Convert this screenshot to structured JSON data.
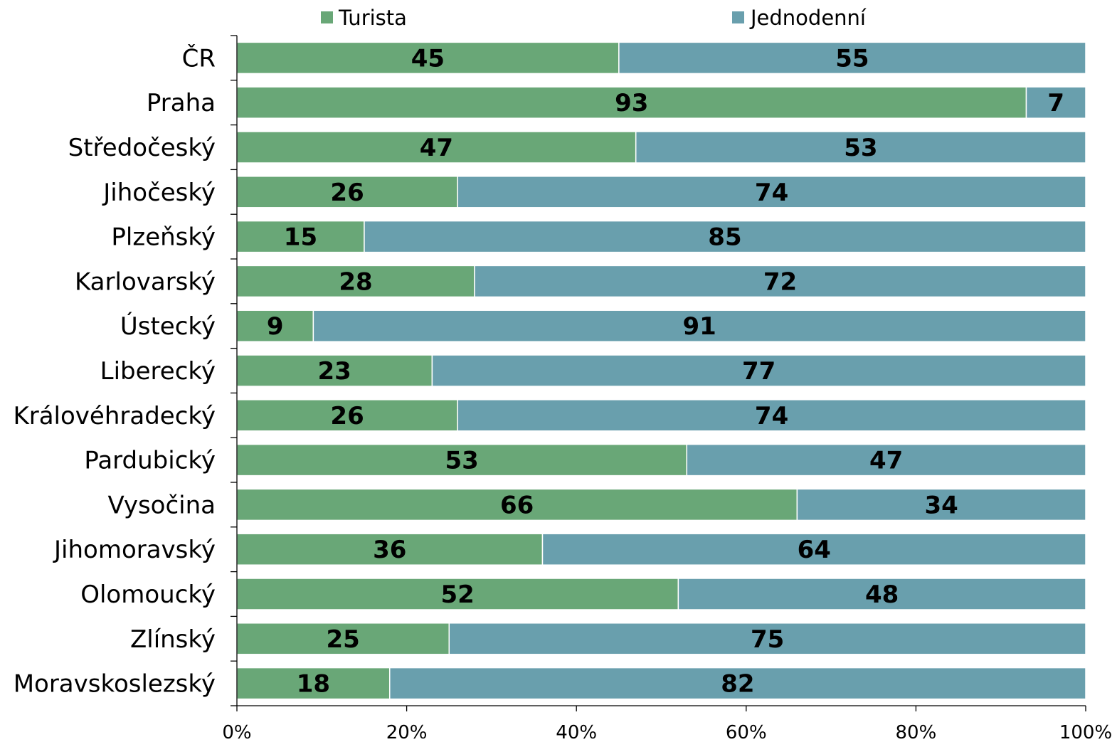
{
  "chart_data": {
    "type": "bar",
    "orientation": "horizontal",
    "stacking": "percent",
    "categories": [
      "ČR",
      "Praha",
      "Středočeský",
      "Jihočeský",
      "Plzeňský",
      "Karlovarský",
      "Ústecký",
      "Liberecký",
      "Královéhradecký",
      "Pardubický",
      "Vysočina",
      "Jihomoravský",
      "Olomoucký",
      "Zlínský",
      "Moravskoslezský"
    ],
    "series": [
      {
        "name": "Turista",
        "color": "#69a777",
        "values": [
          45,
          93,
          47,
          26,
          15,
          28,
          9,
          23,
          26,
          53,
          66,
          36,
          52,
          25,
          18
        ]
      },
      {
        "name": "Jednodenní",
        "color": "#699fad",
        "values": [
          55,
          7,
          53,
          74,
          85,
          72,
          91,
          77,
          74,
          47,
          34,
          64,
          48,
          75,
          82
        ]
      }
    ],
    "xticks": [
      "0%",
      "20%",
      "40%",
      "60%",
      "80%",
      "100%"
    ],
    "xlim": [
      0,
      100
    ],
    "grid": false,
    "legend_position": "top",
    "title": "",
    "xlabel": "",
    "ylabel": ""
  }
}
